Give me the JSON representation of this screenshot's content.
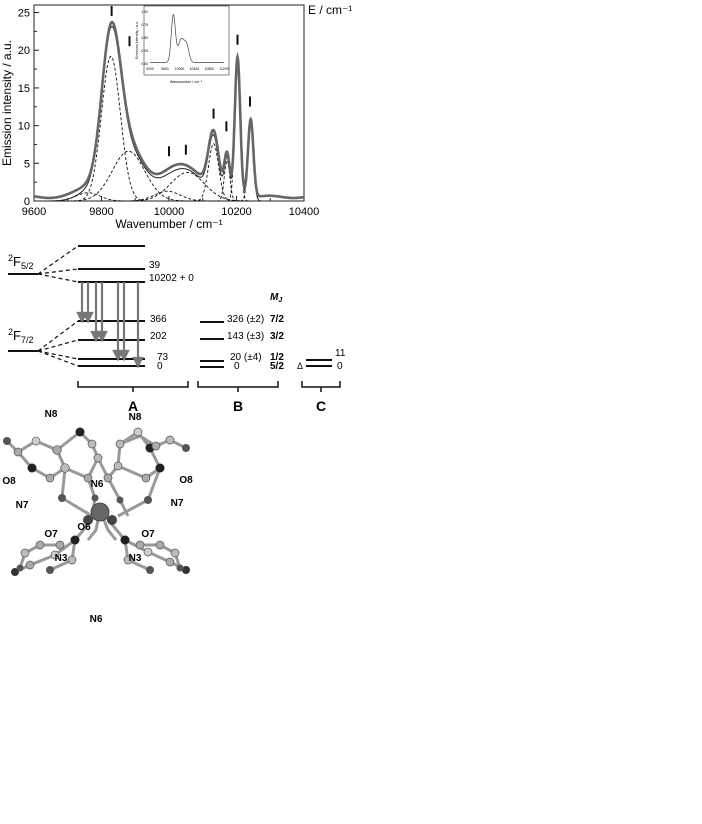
{
  "chart_data": {
    "type": "line",
    "xlabel": "Wavenumber / cm⁻¹",
    "ylabel": "Emission intensity / a.u.",
    "xlim": [
      9600,
      10400
    ],
    "ylim": [
      0,
      26
    ],
    "x_ticks": [
      "9600",
      "9800",
      "10000",
      "10200",
      "10400"
    ],
    "y_ticks": [
      "0",
      "5",
      "10",
      "15",
      "20",
      "25"
    ],
    "annotation_energy": "E / cm⁻¹",
    "peaks": [
      {
        "x": 9830,
        "y": 24.1
      },
      {
        "x": 10000,
        "y": 4.3
      },
      {
        "x": 10050,
        "y": 5.0
      },
      {
        "x": 10132,
        "y": 9.6
      },
      {
        "x": 10170,
        "y": 7.9
      },
      {
        "x": 10203,
        "y": 19.4
      },
      {
        "x": 10240,
        "y": 11.0
      }
    ],
    "peak_markers_x": [
      9830,
      9883,
      10000,
      10050,
      10132,
      10170,
      10203,
      10240
    ],
    "inset": {
      "xlabel": "Wavenumber / cm⁻¹",
      "ylabel": "Emission intensity / a.u.",
      "x_ticks": [
        "9200",
        "9600",
        "10000",
        "10400",
        "10800",
        "11200"
      ],
      "y_ticks": [
        "0.00",
        "0.25",
        "0.50",
        "0.75",
        "1.00"
      ]
    }
  },
  "levels": {
    "f52_label": "F",
    "f52_sup": "2",
    "f52_sub": "5/2",
    "f72_label": "F",
    "f72_sup": "2",
    "f72_sub": "7/2",
    "col_a_values": [
      "39",
      "10202 + 0",
      "366",
      "202",
      "73",
      "0"
    ],
    "col_b_values": [
      "326 (±2)",
      "143 (±3)",
      "20 (±4)",
      "0"
    ],
    "mj_header": "M",
    "mj_sub": "J",
    "mj_values": [
      "7/2",
      "3/2",
      "1/2",
      "5/2"
    ],
    "col_c_values": [
      "11",
      "0"
    ],
    "delta": "Δ",
    "group_labels": [
      "A",
      "B",
      "C"
    ]
  },
  "structure": {
    "atom_labels": [
      "N8",
      "N8",
      "O8",
      "N6",
      "O8",
      "N7",
      "N7",
      "O7",
      "O6",
      "O7",
      "N3",
      "N3",
      "N6"
    ]
  }
}
